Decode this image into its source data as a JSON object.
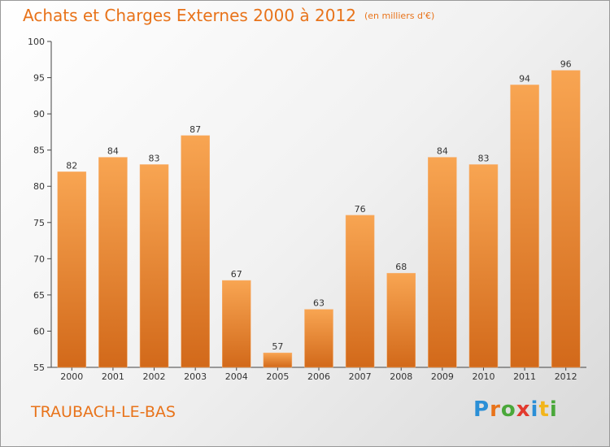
{
  "title": "Achats et Charges Externes 2000 à 2012",
  "subtitle": "(en milliers d'€)",
  "place": "TRAUBACH-LE-BAS",
  "logo": {
    "text": "Proxiti",
    "letter_colors": [
      "#2b8fd6",
      "#e8731a",
      "#4aa83a",
      "#e23a2e",
      "#2b8fd6",
      "#f2b51b",
      "#4aa83a"
    ]
  },
  "colors": {
    "bar_top": "#f8a552",
    "bar_bottom": "#d2691a",
    "title": "#e8731a"
  },
  "chart_data": {
    "type": "bar",
    "categories": [
      "2000",
      "2001",
      "2002",
      "2003",
      "2004",
      "2005",
      "2006",
      "2007",
      "2008",
      "2009",
      "2010",
      "2011",
      "2012"
    ],
    "values": [
      82,
      84,
      83,
      87,
      67,
      57,
      63,
      76,
      68,
      84,
      83,
      94,
      96
    ],
    "ylim": [
      55,
      100
    ],
    "yticks": [
      55,
      60,
      65,
      70,
      75,
      80,
      85,
      90,
      95,
      100
    ],
    "grid": false,
    "legend": "none"
  }
}
